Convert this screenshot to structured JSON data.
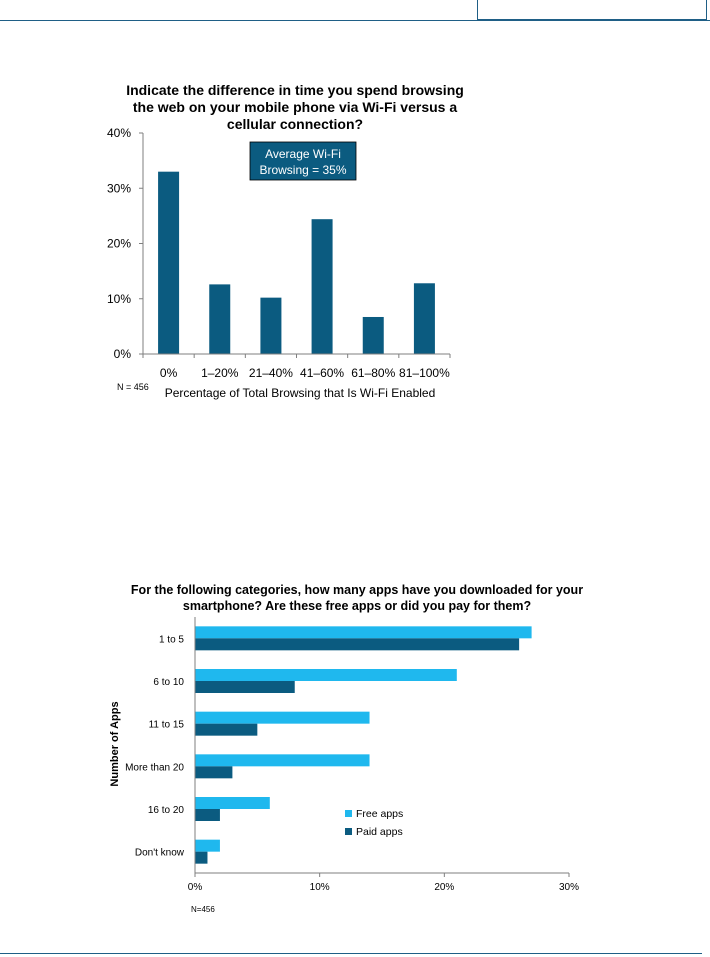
{
  "chart_data": [
    {
      "type": "bar",
      "title": [
        "Indicate the difference in time you spend browsing",
        "the web on your mobile phone via Wi-Fi versus a",
        "cellular connection?"
      ],
      "categories": [
        "0%",
        "1–20%",
        "21–40%",
        "41–60%",
        "61–80%",
        "81–100%"
      ],
      "values": [
        33,
        12.6,
        10.2,
        24.4,
        6.7,
        12.8
      ],
      "xlabel": "Percentage of Total Browsing that Is Wi-Fi Enabled",
      "ylabel": "",
      "ylim": [
        0,
        40
      ],
      "yticks": [
        "0%",
        "10%",
        "20%",
        "30%",
        "40%"
      ],
      "annotation": [
        "Average Wi-Fi",
        "Browsing = 35%"
      ],
      "note": "N = 456",
      "bar_color": "#0b5b80",
      "grid": false
    },
    {
      "type": "bar",
      "orientation": "horizontal",
      "title": [
        "For the following categories, how many apps have you downloaded for your",
        "smartphone? Are these free apps or did you pay for them?"
      ],
      "categories": [
        "1 to 5",
        "6 to 10",
        "11 to 15",
        "More than 20",
        "16 to 20",
        "Don't know"
      ],
      "series": [
        {
          "name": "Free apps",
          "values": [
            27,
            21,
            14,
            14,
            6,
            2
          ],
          "color": "#1fb8ee"
        },
        {
          "name": "Paid apps",
          "values": [
            26,
            8,
            5,
            3,
            2,
            1
          ],
          "color": "#0b5b80"
        }
      ],
      "xlabel": "",
      "ylabel": "Number of Apps",
      "xlim": [
        0,
        30
      ],
      "xticks": [
        "0%",
        "10%",
        "20%",
        "30%"
      ],
      "note": "N=456",
      "legend_position": "bottom-right",
      "grid": false
    }
  ]
}
